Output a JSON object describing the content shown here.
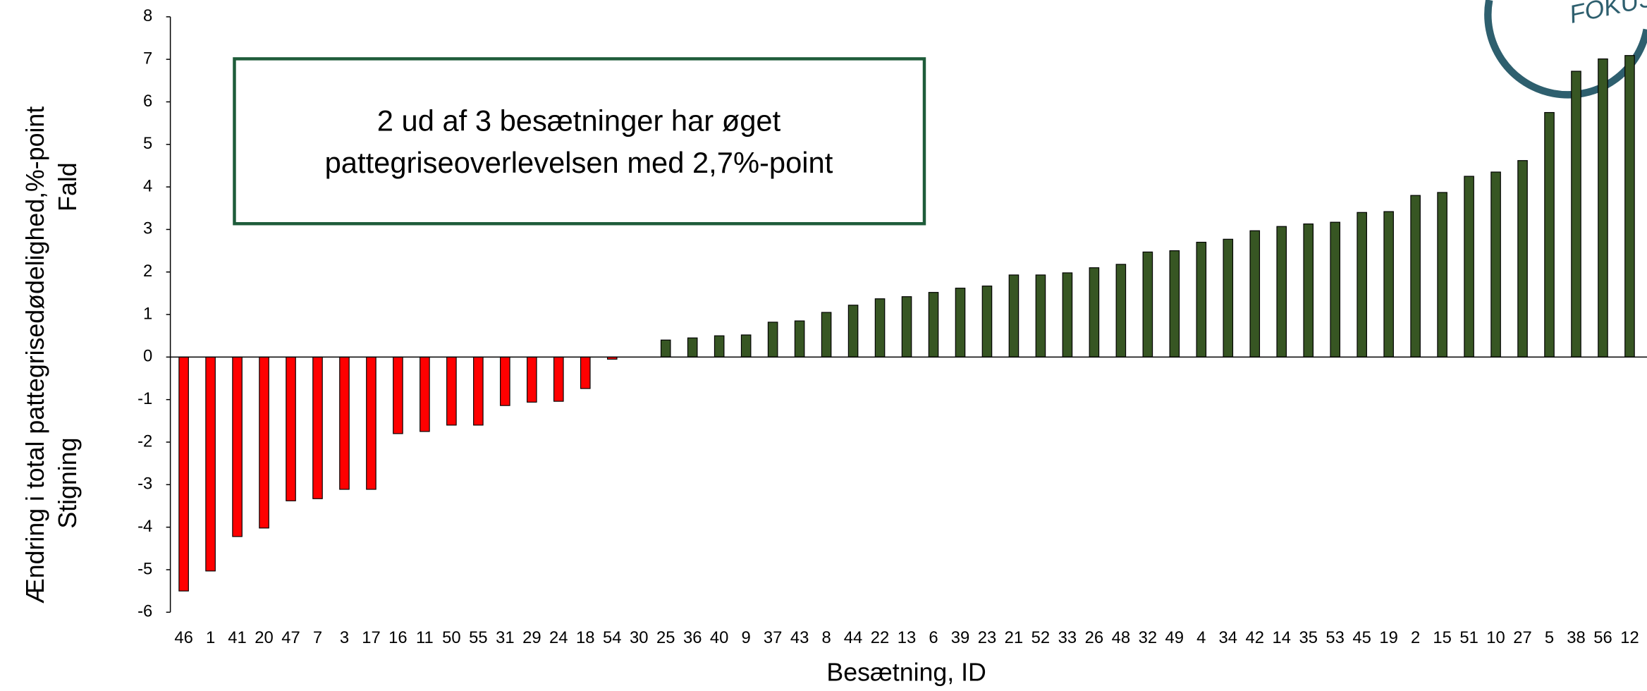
{
  "chart_data": {
    "type": "bar",
    "x_label": "Besætning, ID",
    "y_label": "Ændring i total pattegrisedødelighed,%-point",
    "y_annotation_top": "Fald",
    "y_annotation_bottom": "Stigning",
    "annotation_lines": [
      "2 ud af 3 besætninger har øget",
      "pattegriseoverlevelsen med 2,7%-point"
    ],
    "logo_text": "FOKUS",
    "categories": [
      "46",
      "1",
      "41",
      "20",
      "47",
      "7",
      "3",
      "17",
      "16",
      "11",
      "50",
      "55",
      "31",
      "29",
      "24",
      "18",
      "54",
      "30",
      "25",
      "36",
      "40",
      "9",
      "37",
      "43",
      "8",
      "44",
      "22",
      "13",
      "6",
      "39",
      "23",
      "21",
      "52",
      "33",
      "26",
      "48",
      "32",
      "49",
      "4",
      "34",
      "42",
      "14",
      "35",
      "53",
      "45",
      "19",
      "2",
      "15",
      "51",
      "10",
      "27",
      "5",
      "38",
      "56",
      "12"
    ],
    "values": [
      -5.5,
      -5.03,
      -4.22,
      -4.02,
      -3.38,
      -3.33,
      -3.11,
      -3.11,
      -1.8,
      -1.75,
      -1.6,
      -1.6,
      -1.14,
      -1.06,
      -1.04,
      -0.74,
      -0.05,
      0,
      0.4,
      0.45,
      0.5,
      0.52,
      0.82,
      0.85,
      1.05,
      1.22,
      1.37,
      1.42,
      1.52,
      1.62,
      1.67,
      1.93,
      1.93,
      1.98,
      2.1,
      2.18,
      2.47,
      2.5,
      2.7,
      2.77,
      2.97,
      3.07,
      3.13,
      3.17,
      3.4,
      3.42,
      3.8,
      3.87,
      4.25,
      4.35,
      4.62,
      5.75,
      6.72,
      7.01,
      7.09
    ],
    "color": "#375623",
    "negative_color": "#ff0000",
    "ylim": [
      -6,
      8
    ],
    "yticks": [
      -6,
      -5,
      -4,
      -3,
      -2,
      -1,
      0,
      1,
      2,
      3,
      4,
      5,
      6,
      7,
      8
    ],
    "grid": false
  }
}
